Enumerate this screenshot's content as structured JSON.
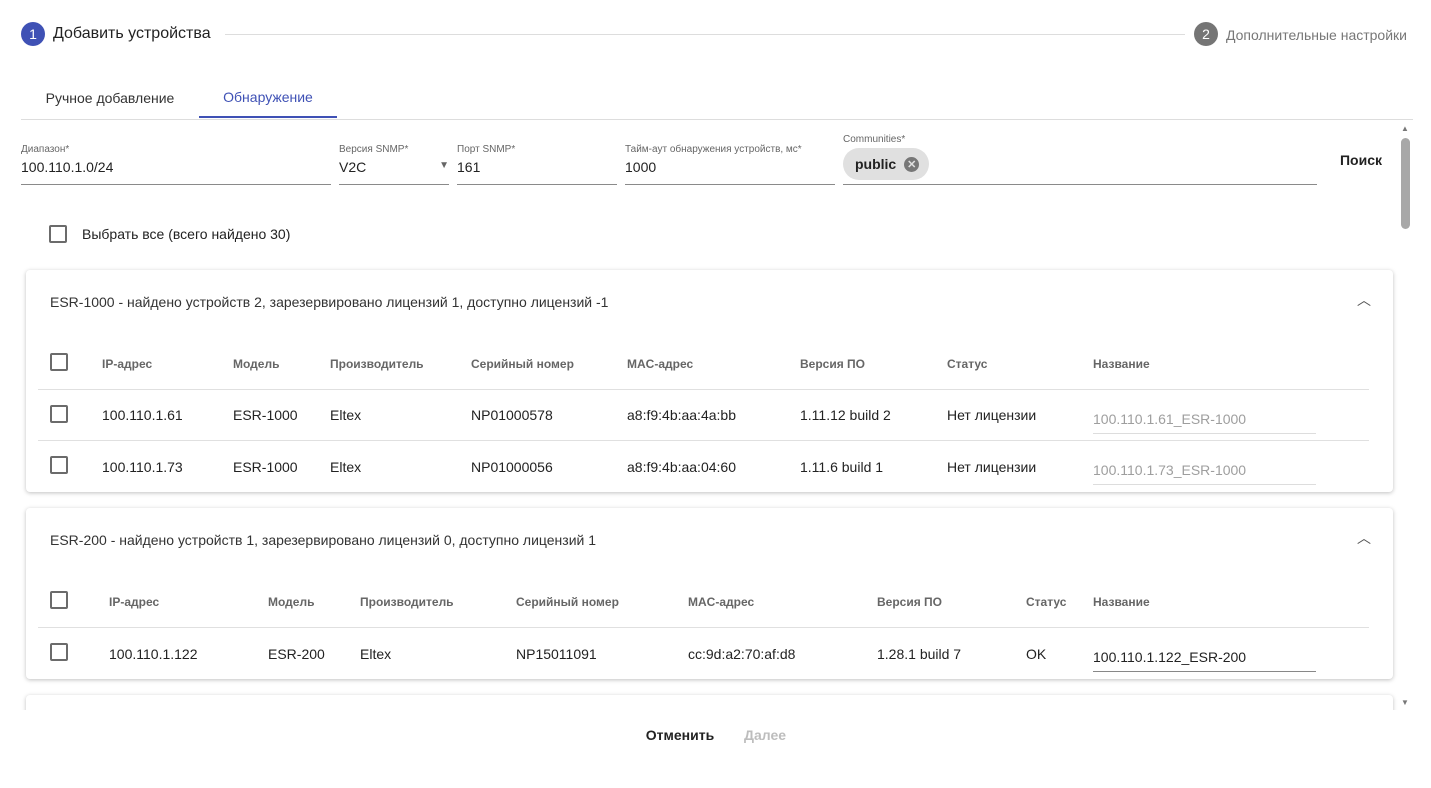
{
  "stepper": {
    "steps": [
      {
        "num": "1",
        "label": "Добавить устройства",
        "active": true
      },
      {
        "num": "2",
        "label": "Дополнительные настройки",
        "active": false
      }
    ]
  },
  "tabs": [
    {
      "label": "Ручное добавление",
      "active": false
    },
    {
      "label": "Обнаружение",
      "active": true
    }
  ],
  "form": {
    "range": {
      "label": "Диапазон*",
      "value": "100.110.1.0/24"
    },
    "snmp_version": {
      "label": "Версия SNMP*",
      "value": "V2C"
    },
    "snmp_port": {
      "label": "Порт SNMP*",
      "value": "161"
    },
    "timeout": {
      "label": "Тайм-аут обнаружения устройств, мс*",
      "value": "1000"
    },
    "communities": {
      "label": "Communities*",
      "chips": [
        "public"
      ]
    },
    "search_label": "Поиск"
  },
  "select_all": "Выбрать все (всего найдено 30)",
  "groups": [
    {
      "title": "ESR-1000 - найдено устройств 2, зарезервировано лицензий 1, доступно лицензий -1",
      "columns": [
        "IP-адрес",
        "Модель",
        "Производитель",
        "Серийный номер",
        "MAC-адрес",
        "Версия ПО",
        "Статус",
        "Название"
      ],
      "rows": [
        [
          "100.110.1.61",
          "ESR-1000",
          "Eltex",
          "NP01000578",
          "a8:f9:4b:aa:4a:bb",
          "1.11.12 build 2",
          "Нет лицензии",
          "100.110.1.61_ESR-1000"
        ],
        [
          "100.110.1.73",
          "ESR-1000",
          "Eltex",
          "NP01000056",
          "a8:f9:4b:aa:04:60",
          "1.11.6 build 1",
          "Нет лицензии",
          "100.110.1.73_ESR-1000"
        ]
      ]
    },
    {
      "title": "ESR-200 - найдено устройств 1, зарезервировано лицензий 0, доступно лицензий 1",
      "columns": [
        "IP-адрес",
        "Модель",
        "Производитель",
        "Серийный номер",
        "MAC-адрес",
        "Версия ПО",
        "Статус",
        "Название"
      ],
      "rows": [
        [
          "100.110.1.122",
          "ESR-200",
          "Eltex",
          "NP15011091",
          "cc:9d:a2:70:af:d8",
          "1.28.1 build 7",
          "OK",
          "100.110.1.122_ESR-200"
        ]
      ]
    }
  ],
  "footer": {
    "cancel": "Отменить",
    "next": "Далее"
  },
  "colors": {
    "accent": "#3f51b5",
    "step_inactive": "#757575"
  }
}
